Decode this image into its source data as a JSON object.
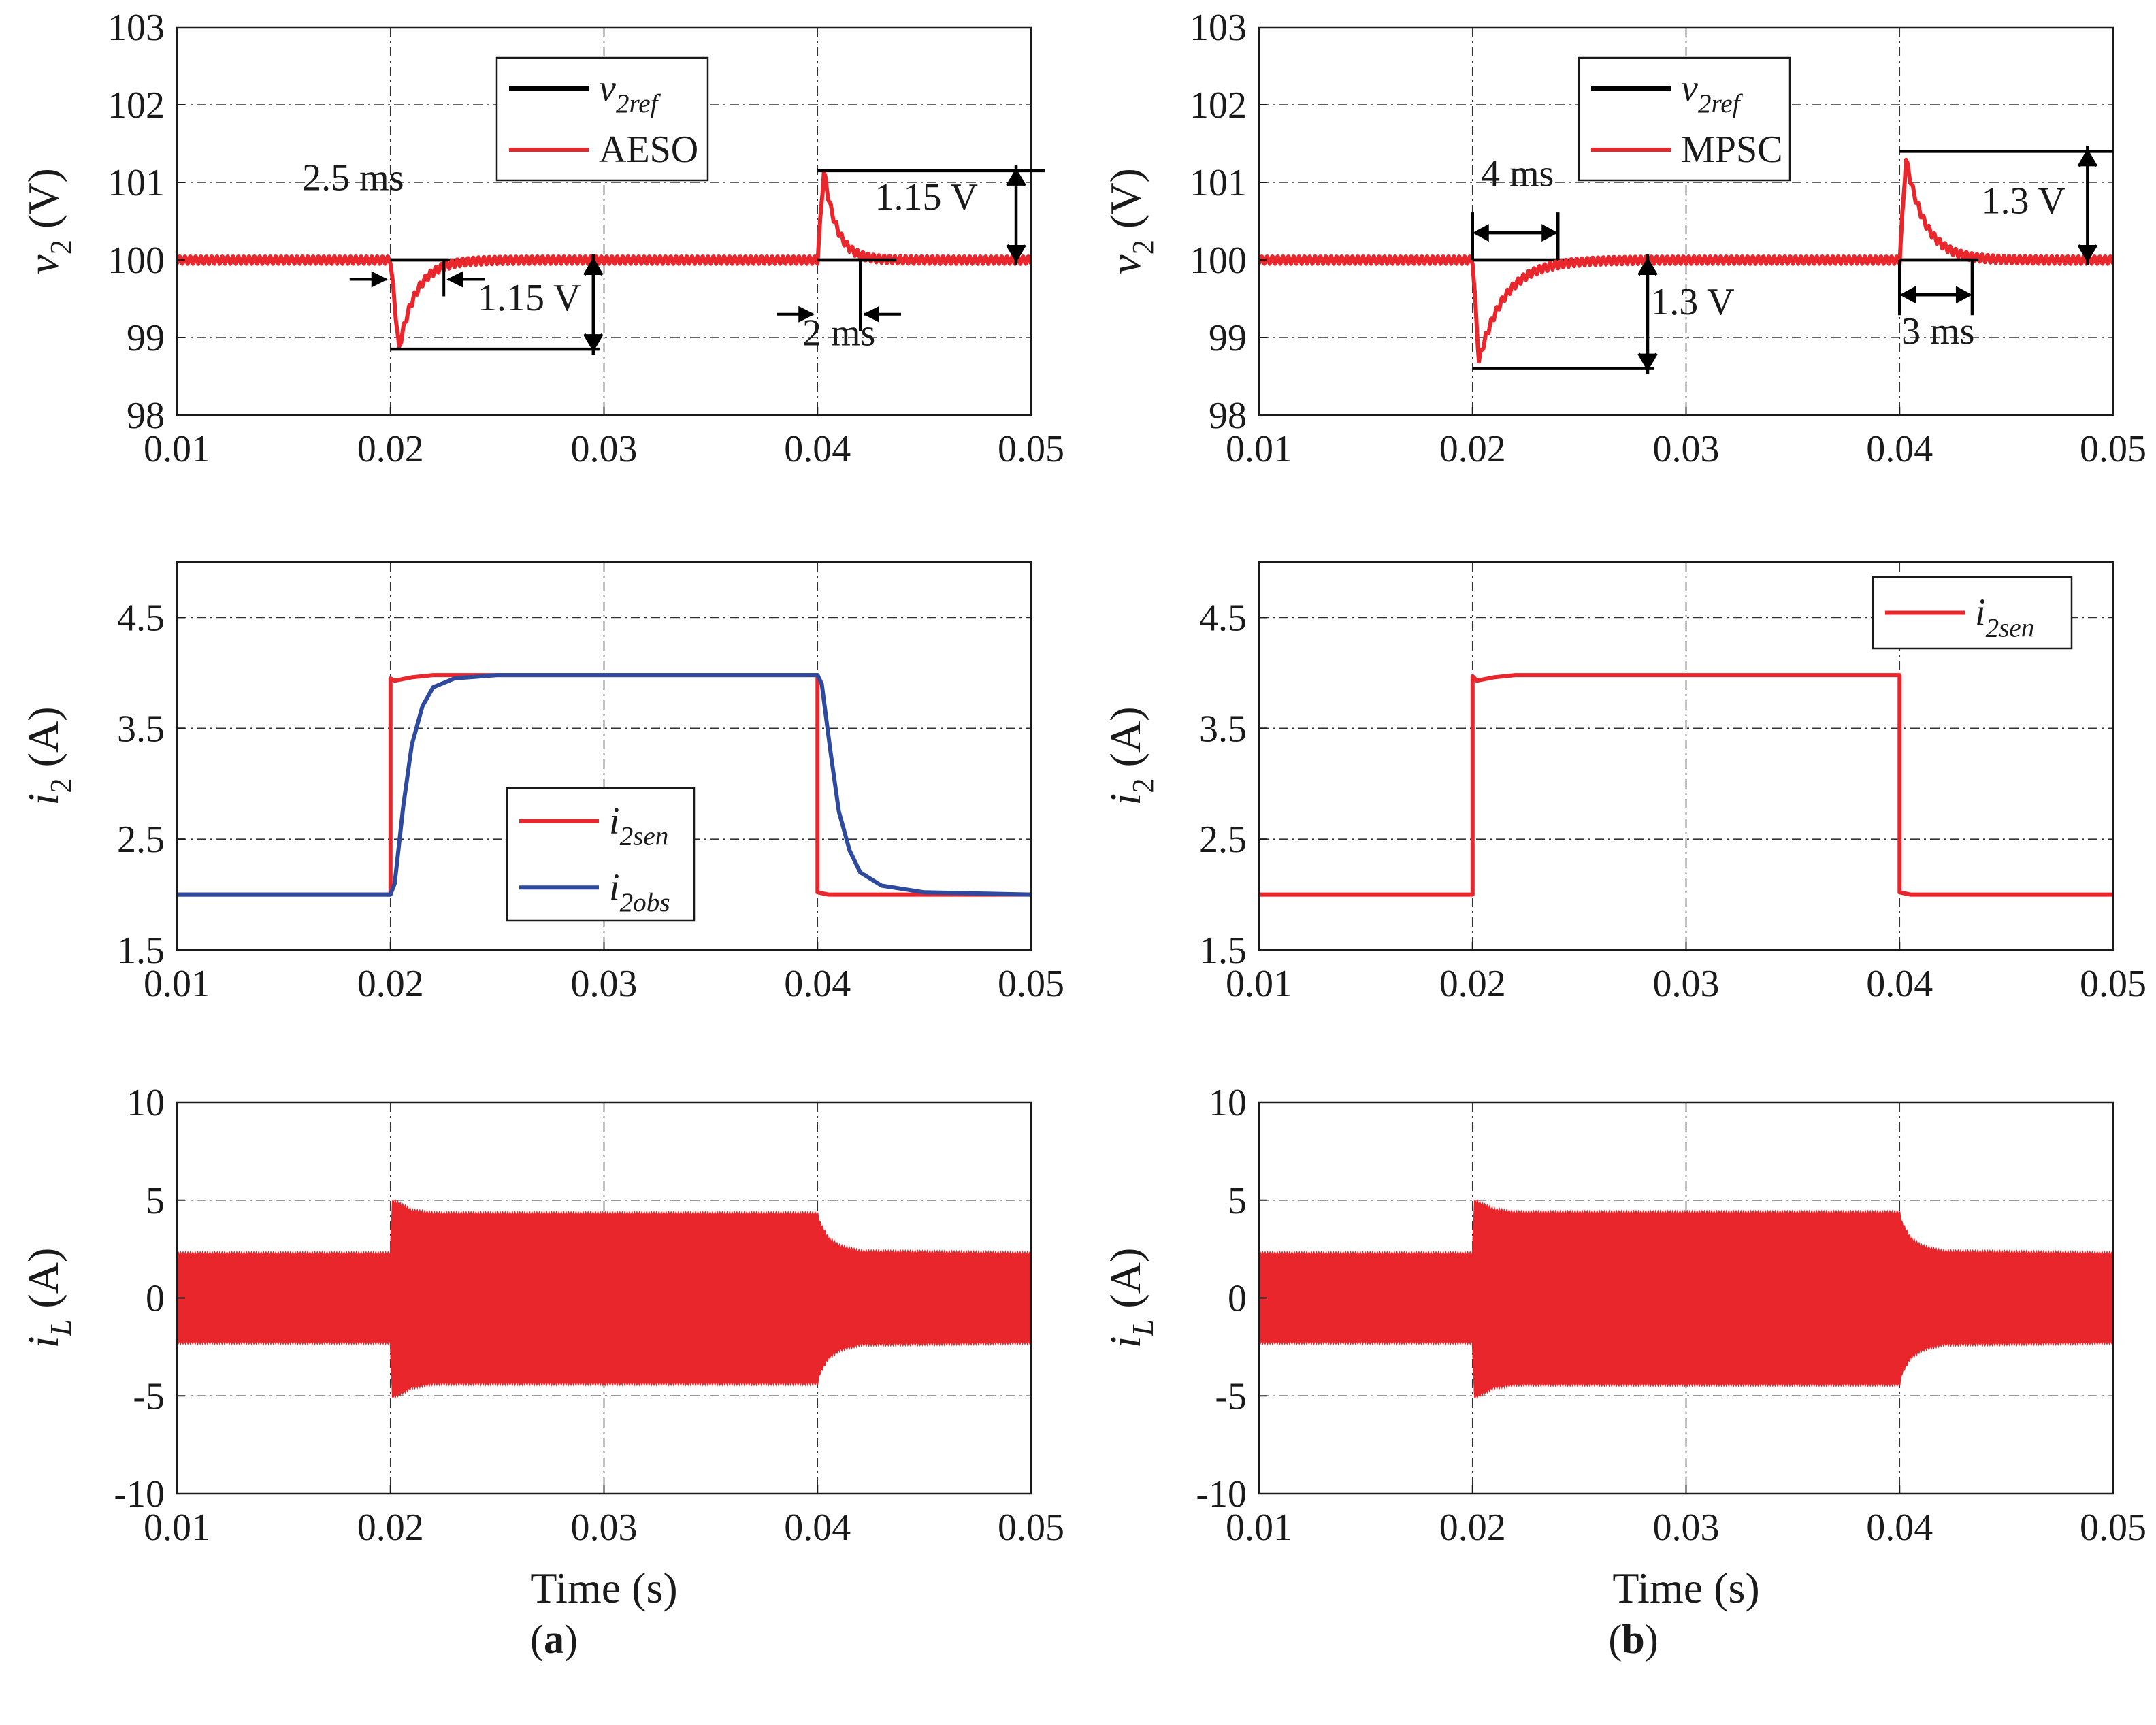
{
  "chart_data": [
    {
      "id": "a1",
      "type": "line",
      "ylabel": {
        "sym": "v",
        "sub": "2",
        "unit": " (V)"
      },
      "xlim": [
        0.01,
        0.05
      ],
      "ylim": [
        98,
        103
      ],
      "xticks": [
        "0.01",
        "0.02",
        "0.03",
        "0.04",
        "0.05"
      ],
      "yticks": [
        "98",
        "99",
        "100",
        "101",
        "102",
        "103"
      ],
      "grid": true,
      "legend_position": "top-center",
      "series": [
        {
          "key": "ref",
          "name": {
            "sym": "v",
            "sub": "2ref"
          },
          "color": "#000000",
          "x": [
            0.01,
            0.02,
            0.02,
            0.04,
            0.04,
            0.05
          ],
          "y": [
            100,
            100,
            100,
            100,
            100,
            100
          ]
        },
        {
          "key": "aeso",
          "name": {
            "text": "AESO"
          },
          "color": "#e8262b",
          "response": {
            "base": 100,
            "ripple": 0.1,
            "events": [
              {
                "t": 0.02,
                "peak": -1.15,
                "rise": 0.0004,
                "tau": 0.0008
              },
              {
                "t": 0.04,
                "peak": 1.15,
                "rise": 0.0003,
                "tau": 0.0006
              }
            ]
          }
        }
      ],
      "annotations": [
        {
          "text": "2.5 ms",
          "kind": "h",
          "x1": 0.02,
          "x2": 0.0225,
          "y": 99.75,
          "label": [
            0.01825,
            100.9
          ]
        },
        {
          "text": "1.15 V",
          "kind": "v",
          "x": 0.0295,
          "y1": 98.85,
          "y2": 100,
          "label": [
            0.0265,
            99.35
          ]
        },
        {
          "text": "1.15 V",
          "kind": "v",
          "x": 0.0493,
          "y1": 100,
          "y2": 101.15,
          "label": [
            0.0451,
            100.65
          ]
        },
        {
          "text": "2 ms",
          "kind": "h",
          "x1": 0.04,
          "x2": 0.042,
          "y": 99.3,
          "label": [
            0.041,
            98.9
          ]
        }
      ]
    },
    {
      "id": "b1",
      "type": "line",
      "ylabel": {
        "sym": "v",
        "sub": "2",
        "unit": " (V)"
      },
      "xlim": [
        0.01,
        0.05
      ],
      "ylim": [
        98,
        103
      ],
      "xticks": [
        "0.01",
        "0.02",
        "0.03",
        "0.04",
        "0.05"
      ],
      "yticks": [
        "98",
        "99",
        "100",
        "101",
        "102",
        "103"
      ],
      "grid": true,
      "legend_position": "top-center",
      "series": [
        {
          "key": "ref",
          "name": {
            "sym": "v",
            "sub": "2ref"
          },
          "color": "#000000",
          "x": [
            0.01,
            0.02,
            0.02,
            0.04,
            0.04,
            0.05
          ],
          "y": [
            100,
            100,
            100,
            100,
            100,
            100
          ]
        },
        {
          "key": "mpsc",
          "name": {
            "text": "MPSC"
          },
          "color": "#e8262b",
          "response": {
            "base": 100,
            "ripple": 0.1,
            "events": [
              {
                "t": 0.02,
                "peak": -1.3,
                "rise": 0.0003,
                "tau": 0.0012
              },
              {
                "t": 0.04,
                "peak": 1.3,
                "rise": 0.0003,
                "tau": 0.0009
              }
            ]
          }
        }
      ],
      "annotations": [
        {
          "text": "4 ms",
          "kind": "h",
          "x1": 0.02,
          "x2": 0.024,
          "y": 100.35,
          "label": [
            0.0221,
            100.95
          ]
        },
        {
          "text": "1.3 V",
          "kind": "v",
          "x": 0.0282,
          "y1": 98.6,
          "y2": 100,
          "label": [
            0.0303,
            99.3
          ]
        },
        {
          "text": "1.3 V",
          "kind": "v",
          "x": 0.0488,
          "y1": 100,
          "y2": 101.4,
          "label": [
            0.0458,
            100.6
          ]
        },
        {
          "text": "3 ms",
          "kind": "h",
          "x1": 0.04,
          "x2": 0.0434,
          "y": 99.55,
          "label": [
            0.0418,
            98.92
          ]
        }
      ]
    },
    {
      "id": "a2",
      "type": "line",
      "ylabel": {
        "sym": "i",
        "sub": "2",
        "unit": " (A)"
      },
      "xlim": [
        0.01,
        0.05
      ],
      "ylim": [
        1.5,
        5.0
      ],
      "xticks": [
        "0.01",
        "0.02",
        "0.03",
        "0.04",
        "0.05"
      ],
      "yticks": [
        "1.5",
        "2.5",
        "3.5",
        "4.5"
      ],
      "ytick_values": [
        1.5,
        2.5,
        3.5,
        4.5
      ],
      "grid": true,
      "legend_position": "center",
      "series": [
        {
          "key": "sen",
          "name": {
            "sym": "i",
            "sub": "2sen"
          },
          "color": "#e8262b",
          "x": [
            0.01,
            0.02,
            0.02,
            0.0202,
            0.021,
            0.022,
            0.04,
            0.04,
            0.0405,
            0.05
          ],
          "y": [
            2.0,
            2.0,
            3.95,
            3.93,
            3.96,
            3.98,
            3.98,
            2.02,
            2.0,
            2.0
          ]
        },
        {
          "key": "obs",
          "name": {
            "sym": "i",
            "sub": "2obs"
          },
          "color": "#2e4a9e",
          "x": [
            0.01,
            0.02,
            0.0202,
            0.0206,
            0.021,
            0.0215,
            0.022,
            0.023,
            0.025,
            0.04,
            0.0402,
            0.0406,
            0.041,
            0.0415,
            0.042,
            0.043,
            0.045,
            0.05
          ],
          "y": [
            2.0,
            2.0,
            2.1,
            2.8,
            3.35,
            3.7,
            3.87,
            3.95,
            3.98,
            3.98,
            3.9,
            3.3,
            2.75,
            2.4,
            2.2,
            2.08,
            2.02,
            2.0
          ]
        }
      ]
    },
    {
      "id": "b2",
      "type": "line",
      "ylabel": {
        "sym": "i",
        "sub": "2",
        "unit": " (A)"
      },
      "xlim": [
        0.01,
        0.05
      ],
      "ylim": [
        1.5,
        5.0
      ],
      "xticks": [
        "0.01",
        "0.02",
        "0.03",
        "0.04",
        "0.05"
      ],
      "yticks": [
        "1.5",
        "2.5",
        "3.5",
        "4.5"
      ],
      "ytick_values": [
        1.5,
        2.5,
        3.5,
        4.5
      ],
      "grid": true,
      "legend_position": "top-right",
      "series": [
        {
          "key": "sen",
          "name": {
            "sym": "i",
            "sub": "2sen"
          },
          "color": "#e8262b",
          "x": [
            0.01,
            0.02,
            0.02,
            0.0202,
            0.021,
            0.022,
            0.04,
            0.04,
            0.0405,
            0.05
          ],
          "y": [
            2.0,
            2.0,
            3.97,
            3.93,
            3.96,
            3.98,
            3.98,
            2.02,
            2.0,
            2.0
          ]
        }
      ]
    },
    {
      "id": "a3",
      "type": "area",
      "ylabel": {
        "sym": "i",
        "sub": "L",
        "unit": " (A)"
      },
      "xlabel": "Time (s)",
      "xlim": [
        0.01,
        0.05
      ],
      "ylim": [
        -10,
        10
      ],
      "xticks": [
        "0.01",
        "0.02",
        "0.03",
        "0.04",
        "0.05"
      ],
      "yticks": [
        "-10",
        "-5",
        "0",
        "5",
        "10"
      ],
      "grid": true,
      "series": [
        {
          "key": "iL",
          "name": {
            "text": ""
          },
          "color": "#e8262b",
          "x": [
            0.01,
            0.02,
            0.0201,
            0.0205,
            0.021,
            0.022,
            0.04,
            0.0401,
            0.0405,
            0.041,
            0.042,
            0.05
          ],
          "upper": [
            2.2,
            2.2,
            4.9,
            4.7,
            4.4,
            4.25,
            4.25,
            3.8,
            3.0,
            2.6,
            2.3,
            2.2
          ],
          "lower": [
            -2.2,
            -2.2,
            -5.0,
            -4.8,
            -4.5,
            -4.3,
            -4.3,
            -3.8,
            -3.0,
            -2.6,
            -2.3,
            -2.2
          ]
        }
      ]
    },
    {
      "id": "b3",
      "type": "area",
      "ylabel": {
        "sym": "i",
        "sub": "L",
        "unit": " (A)"
      },
      "xlabel": "Time (s)",
      "xlim": [
        0.01,
        0.05
      ],
      "ylim": [
        -10,
        10
      ],
      "xticks": [
        "0.01",
        "0.02",
        "0.03",
        "0.04",
        "0.05"
      ],
      "yticks": [
        "-10",
        "-5",
        "0",
        "5",
        "10"
      ],
      "grid": true,
      "series": [
        {
          "key": "iL",
          "name": {
            "text": ""
          },
          "color": "#e8262b",
          "x": [
            0.01,
            0.02,
            0.0201,
            0.0205,
            0.021,
            0.022,
            0.04,
            0.0401,
            0.0405,
            0.041,
            0.042,
            0.05
          ],
          "upper": [
            2.2,
            2.2,
            4.9,
            4.7,
            4.45,
            4.3,
            4.3,
            3.8,
            3.0,
            2.6,
            2.3,
            2.2
          ],
          "lower": [
            -2.2,
            -2.2,
            -5.0,
            -4.8,
            -4.5,
            -4.35,
            -4.35,
            -3.8,
            -3.0,
            -2.6,
            -2.3,
            -2.2
          ]
        }
      ]
    }
  ],
  "panel_labels": {
    "left": "a",
    "right": "b"
  }
}
